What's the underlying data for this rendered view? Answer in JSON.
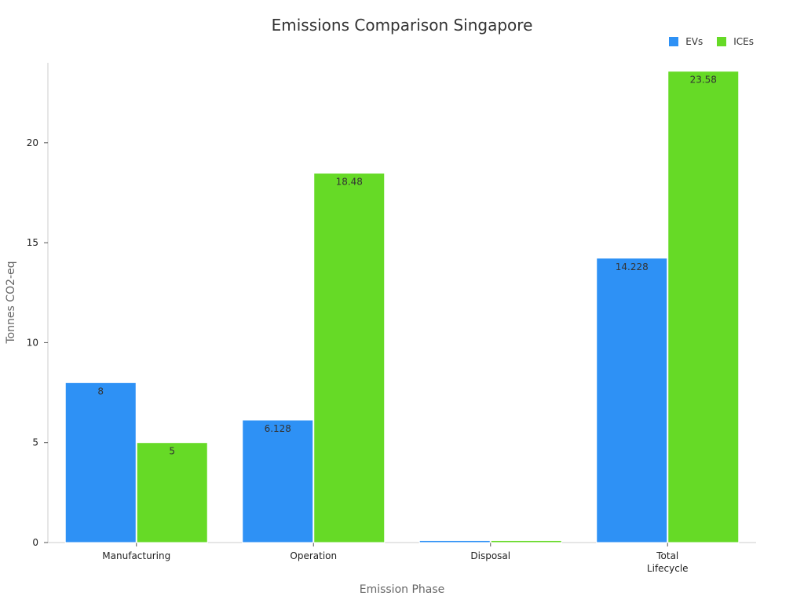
{
  "chart_data": {
    "type": "bar",
    "title": "Emissions Comparison Singapore",
    "xlabel": "Emission Phase",
    "ylabel": "Tonnes CO2-eq",
    "categories": [
      "Manufacturing",
      "Operation",
      "Disposal",
      "Total Lifecycle"
    ],
    "category_lines": [
      [
        "Manufacturing"
      ],
      [
        "Operation"
      ],
      [
        "Disposal"
      ],
      [
        "Total",
        "Lifecycle"
      ]
    ],
    "series": [
      {
        "name": "EVs",
        "color": "#2E91F5",
        "values": [
          8,
          6.128,
          0.1,
          14.228
        ],
        "labels": [
          "8",
          "6.128",
          "",
          "14.228"
        ]
      },
      {
        "name": "ICEs",
        "color": "#66DA26",
        "values": [
          5,
          18.48,
          0.1,
          23.58
        ],
        "labels": [
          "5",
          "18.48",
          "",
          "23.58"
        ]
      }
    ],
    "ylim": [
      0,
      24
    ],
    "yticks": [
      0,
      5,
      10,
      15,
      20
    ],
    "ytick_labels": [
      "0",
      "5",
      "10",
      "15",
      "20"
    ],
    "grid": false,
    "legend_position": "top-right"
  }
}
